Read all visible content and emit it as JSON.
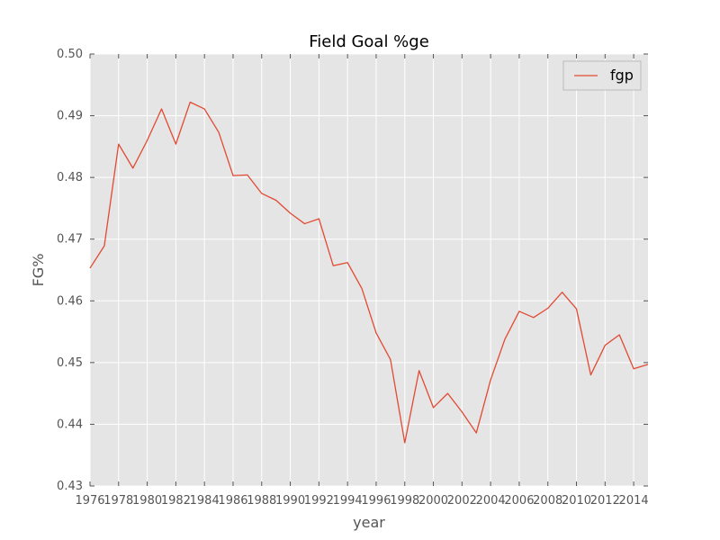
{
  "chart_data": {
    "type": "line",
    "title": "Field Goal %ge",
    "xlabel": "year",
    "ylabel": "FG%",
    "xlim": [
      1976,
      2015
    ],
    "ylim": [
      0.43,
      0.5
    ],
    "x_ticks": [
      "1976",
      "1978",
      "1980",
      "1982",
      "1984",
      "1986",
      "1988",
      "1990",
      "1992",
      "1994",
      "1996",
      "1998",
      "2000",
      "2002",
      "2004",
      "2006",
      "2008",
      "2010",
      "2012",
      "2014"
    ],
    "y_ticks": [
      "0.43",
      "0.44",
      "0.45",
      "0.46",
      "0.47",
      "0.48",
      "0.49",
      "0.50"
    ],
    "grid": true,
    "legend_position": "top-right",
    "series": [
      {
        "name": "fgp",
        "color": "#e24a33",
        "x": [
          1976,
          1977,
          1978,
          1979,
          1980,
          1981,
          1982,
          1983,
          1984,
          1985,
          1986,
          1987,
          1988,
          1989,
          1990,
          1991,
          1992,
          1993,
          1994,
          1995,
          1996,
          1997,
          1998,
          1999,
          2000,
          2001,
          2002,
          2003,
          2004,
          2005,
          2006,
          2007,
          2008,
          2009,
          2010,
          2011,
          2012,
          2013,
          2014,
          2015
        ],
        "y": [
          0.4653,
          0.4689,
          0.4854,
          0.4815,
          0.486,
          0.4911,
          0.4854,
          0.4922,
          0.4911,
          0.4873,
          0.4803,
          0.4804,
          0.4774,
          0.4763,
          0.4742,
          0.4725,
          0.4733,
          0.4657,
          0.4662,
          0.462,
          0.4548,
          0.4505,
          0.437,
          0.4487,
          0.4427,
          0.445,
          0.442,
          0.4386,
          0.4472,
          0.4538,
          0.4583,
          0.4573,
          0.4588,
          0.4614,
          0.4587,
          0.448,
          0.4528,
          0.4545,
          0.449,
          0.4497
        ]
      }
    ]
  }
}
